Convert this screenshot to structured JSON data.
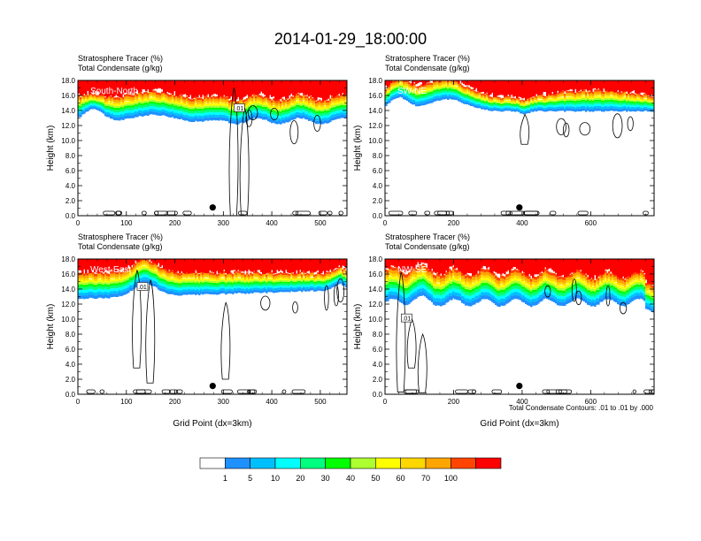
{
  "title": "2014-01-29_18:00:00",
  "colors": {
    "levels": [
      "#ffffff",
      "#1e90ff",
      "#00bfff",
      "#00ffff",
      "#00ff7f",
      "#00ff00",
      "#adff2f",
      "#ffff00",
      "#ffd700",
      "#ffa500",
      "#ff4500",
      "#ff0000"
    ],
    "contour": "#000000"
  },
  "colorbar": {
    "labels": [
      "1",
      "5",
      "10",
      "20",
      "30",
      "40",
      "50",
      "60",
      "70",
      "100"
    ]
  },
  "footnote": "Total Condensate Contours: .01 to .01 by .000",
  "chart_data": [
    {
      "type": "heatmap",
      "label": "South-North",
      "subtitle1": "Stratosphere Tracer   (%)",
      "subtitle2": "Total Condensate   (g/kg)",
      "ylabel": "Height (km)",
      "xlabel": "",
      "xlim": [
        0,
        555
      ],
      "ylim": [
        0,
        18
      ],
      "xticks": [
        0,
        100,
        200,
        300,
        400,
        500
      ],
      "yticks": [
        "0.0",
        "2.0",
        "4.0",
        "6.0",
        "8.0",
        "10.0",
        "12.0",
        "14.0",
        "16.0",
        "18.0"
      ],
      "contour_label": ".01",
      "marker_x": 278,
      "marker_y": 1.1
    },
    {
      "type": "heatmap",
      "label": "SW-NE",
      "subtitle1": "Stratosphere Tracer   (%)",
      "subtitle2": "Total Condensate   (g/kg)",
      "ylabel": "Height (km)",
      "xlabel": "",
      "xlim": [
        0,
        785
      ],
      "ylim": [
        0,
        18
      ],
      "xticks": [
        0,
        200,
        400,
        600
      ],
      "yticks": [
        "0.0",
        "2.0",
        "4.0",
        "6.0",
        "8.0",
        "10.0",
        "12.0",
        "14.0",
        "16.0",
        "18.0"
      ],
      "contour_label": "",
      "marker_x": 392,
      "marker_y": 1.1
    },
    {
      "type": "heatmap",
      "label": "West-East",
      "subtitle1": "Stratosphere Tracer   (%)",
      "subtitle2": "Total Condensate   (g/kg)",
      "ylabel": "Height (km)",
      "xlabel": "Grid Point (dx=3km)",
      "xlim": [
        0,
        555
      ],
      "ylim": [
        0,
        18
      ],
      "xticks": [
        0,
        100,
        200,
        300,
        400,
        500
      ],
      "yticks": [
        "0.0",
        "2.0",
        "4.0",
        "6.0",
        "8.0",
        "10.0",
        "12.0",
        "14.0",
        "16.0",
        "18.0"
      ],
      "contour_label": ".01",
      "marker_x": 278,
      "marker_y": 1.1
    },
    {
      "type": "heatmap",
      "label": "NW-SE",
      "subtitle1": "Stratosphere Tracer   (%)",
      "subtitle2": "Total Condensate   (g/kg)",
      "ylabel": "Height (km)",
      "xlabel": "Grid Point (dx=3km)",
      "xlim": [
        0,
        785
      ],
      "ylim": [
        0,
        18
      ],
      "xticks": [
        0,
        200,
        400,
        600
      ],
      "yticks": [
        "0.0",
        "2.0",
        "4.0",
        "6.0",
        "8.0",
        "10.0",
        "12.0",
        "14.0",
        "16.0",
        "18.0"
      ],
      "contour_label": ".01",
      "marker_x": 392,
      "marker_y": 1.1
    }
  ]
}
